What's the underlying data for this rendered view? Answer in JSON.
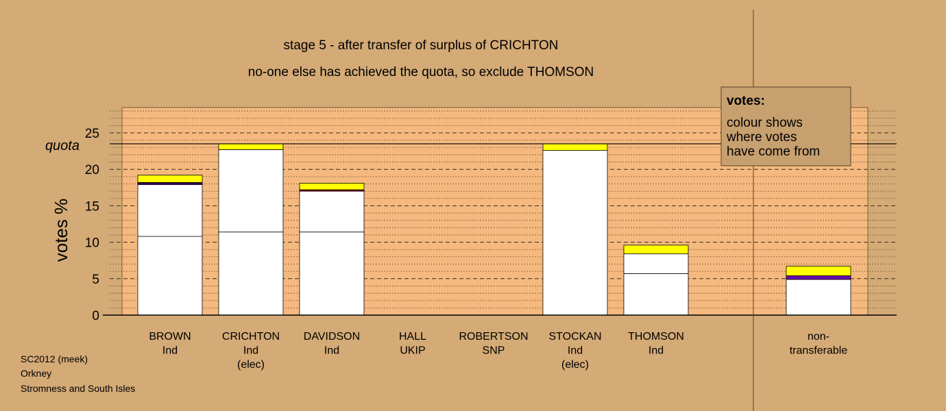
{
  "title_line1": "stage 5 - after transfer of surplus of CRICHTON",
  "title_line2": "no-one else has achieved the quota, so exclude THOMSON",
  "footer": [
    "SC2012 (meek)",
    "Orkney",
    "Stromness and South Isles"
  ],
  "legend": {
    "heading": "votes:",
    "lines": [
      "colour shows",
      "where votes",
      "have come from"
    ]
  },
  "colors": {
    "background": "#d4aa76",
    "plot_area": "#f5b97f",
    "legend_box": "#c7a070",
    "first_pref": "#ffffff",
    "from_crichton": "#ffff00",
    "from_hall": "#6a0dad",
    "from_other": "#800000"
  },
  "chart_data": {
    "type": "bar",
    "stacked": true,
    "ylabel": "votes %",
    "quota_label": "quota",
    "quota": 23.5,
    "ylim": [
      0,
      28.5
    ],
    "yticks": [
      0,
      5,
      10,
      15,
      20,
      25
    ],
    "grid": true,
    "legend_position": "top-right",
    "candidates": [
      {
        "name": "BROWN",
        "party": "Ind",
        "status": "",
        "segments": [
          {
            "source": "first",
            "value": 10.8,
            "color": "#ffffff"
          },
          {
            "source": "transfer",
            "value": 7.1,
            "color": "#ffffff"
          },
          {
            "source": "hall",
            "value": 0.2,
            "color": "#6a0dad"
          },
          {
            "source": "other",
            "value": 0.1,
            "color": "#800000"
          },
          {
            "source": "crichton",
            "value": 1.0,
            "color": "#ffff00"
          }
        ]
      },
      {
        "name": "CRICHTON",
        "party": "Ind",
        "status": "(elec)",
        "segments": [
          {
            "source": "first",
            "value": 11.4,
            "color": "#ffffff"
          },
          {
            "source": "transfer",
            "value": 11.3,
            "color": "#ffffff"
          },
          {
            "source": "crichton",
            "value": 0.8,
            "color": "#ffff00"
          }
        ]
      },
      {
        "name": "DAVIDSON",
        "party": "Ind",
        "status": "",
        "segments": [
          {
            "source": "first",
            "value": 11.4,
            "color": "#ffffff"
          },
          {
            "source": "transfer",
            "value": 5.6,
            "color": "#ffffff"
          },
          {
            "source": "other",
            "value": 0.2,
            "color": "#800000"
          },
          {
            "source": "crichton",
            "value": 0.9,
            "color": "#ffff00"
          }
        ]
      },
      {
        "name": "HALL",
        "party": "UKIP",
        "status": "",
        "segments": []
      },
      {
        "name": "ROBERTSON",
        "party": "SNP",
        "status": "",
        "segments": []
      },
      {
        "name": "STOCKAN",
        "party": "Ind",
        "status": "(elec)",
        "segments": [
          {
            "source": "first",
            "value": 22.6,
            "color": "#ffffff"
          },
          {
            "source": "crichton",
            "value": 0.9,
            "color": "#ffff00"
          }
        ]
      },
      {
        "name": "THOMSON",
        "party": "Ind",
        "status": "",
        "segments": [
          {
            "source": "first",
            "value": 5.7,
            "color": "#ffffff"
          },
          {
            "source": "transfer",
            "value": 2.7,
            "color": "#ffffff"
          },
          {
            "source": "crichton",
            "value": 1.2,
            "color": "#ffff00"
          }
        ]
      },
      {
        "name": "non-",
        "party": "transferable",
        "status": "",
        "segments": [
          {
            "source": "first",
            "value": 4.9,
            "color": "#ffffff"
          },
          {
            "source": "hall",
            "value": 0.5,
            "color": "#6a0dad"
          },
          {
            "source": "crichton",
            "value": 1.3,
            "color": "#ffff00"
          }
        ]
      }
    ]
  }
}
